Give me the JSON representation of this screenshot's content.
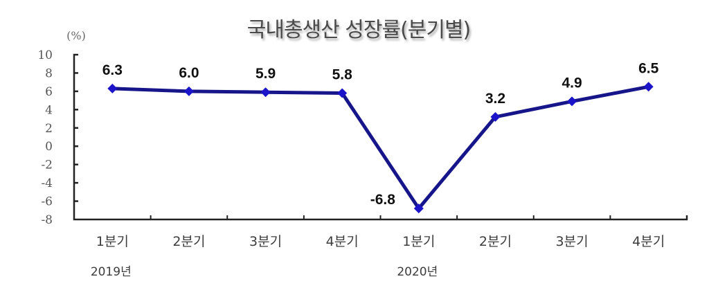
{
  "title": "국내총생산 성장률(분기별)",
  "unit_label": "(%)",
  "colors": {
    "line": "#16168a",
    "marker": "#1c14c8",
    "axis": "#222222",
    "title": "#4a4a4a",
    "tick_text": "#555555"
  },
  "x_axis": {
    "categories": [
      "1분기",
      "2분기",
      "3분기",
      "4분기",
      "1분기",
      "2분기",
      "3분기",
      "4분기"
    ],
    "year_labels": [
      {
        "label": "2019년",
        "index": 0
      },
      {
        "label": "2020년",
        "index": 4
      }
    ]
  },
  "y_axis": {
    "ticks": [
      "10",
      "8",
      "6",
      "4",
      "2",
      "0",
      "-2",
      "-4",
      "-6",
      "-8"
    ],
    "min": -8,
    "max": 10,
    "step": 2
  },
  "data_labels": [
    "6.3",
    "6.0",
    "5.9",
    "5.8",
    "-6.8",
    "3.2",
    "4.9",
    "6.5"
  ],
  "chart_data": {
    "type": "line",
    "title": "국내총생산 성장률(분기별)",
    "xlabel": "",
    "ylabel": "(%)",
    "categories": [
      "2019년 1분기",
      "2019년 2분기",
      "2019년 3분기",
      "2019년 4분기",
      "2020년 1분기",
      "2020년 2분기",
      "2020년 3분기",
      "2020년 4분기"
    ],
    "series": [
      {
        "name": "국내총생산 성장률",
        "values": [
          6.3,
          6.0,
          5.9,
          5.8,
          -6.8,
          3.2,
          4.9,
          6.5
        ]
      }
    ],
    "ylim": [
      -8,
      10
    ],
    "yticks": [
      10,
      8,
      6,
      4,
      2,
      0,
      -2,
      -4,
      -6,
      -8
    ],
    "grid": false,
    "legend": "none",
    "data_labels": true
  }
}
